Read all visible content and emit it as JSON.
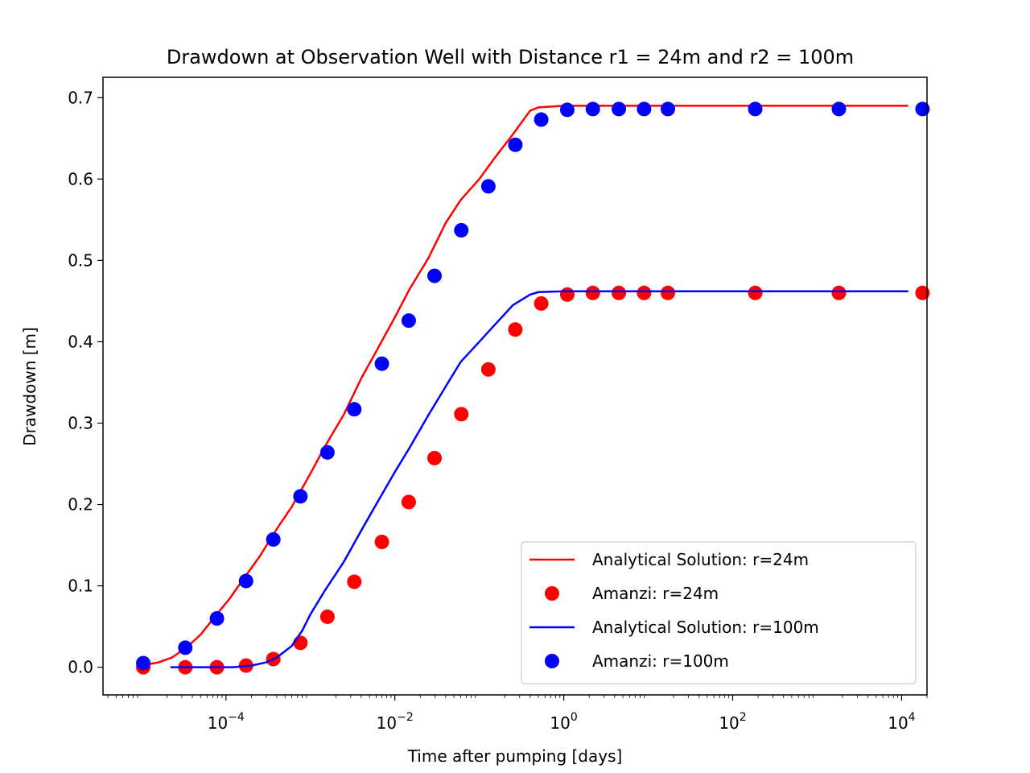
{
  "chart_data": {
    "type": "line",
    "title": "Drawdown at Observation Well with Distance r1  = 24m and r2 = 100m",
    "xlabel": "Time after pumping [days]",
    "ylabel": "Drawdown [m]",
    "xscale": "log",
    "xlim": [
      3.5e-06,
      20000
    ],
    "ylim": [
      -0.034,
      0.725
    ],
    "x_ticks": [
      {
        "value": 0.0001,
        "base": "10",
        "exp": "−4"
      },
      {
        "value": 0.01,
        "base": "10",
        "exp": "−2"
      },
      {
        "value": 1,
        "base": "10",
        "exp": "0"
      },
      {
        "value": 100,
        "base": "10",
        "exp": "2"
      },
      {
        "value": 10000,
        "base": "10",
        "exp": "4"
      }
    ],
    "y_ticks": [
      "0.0",
      "0.1",
      "0.2",
      "0.3",
      "0.4",
      "0.5",
      "0.6",
      "0.7"
    ],
    "grid": false,
    "legend_position": "lower right",
    "series": [
      {
        "name": "Analytical Solution: r=24m",
        "kind": "line",
        "color": "#ff0000",
        "x": [
          1.1e-05,
          1.6e-05,
          2.3e-05,
          3.4e-05,
          5e-05,
          7.5e-05,
          0.00011,
          0.00016,
          0.00025,
          0.0004,
          0.0006,
          0.001,
          0.0015,
          0.0025,
          0.004,
          0.006,
          0.01,
          0.015,
          0.025,
          0.04,
          0.06,
          0.1,
          0.15,
          0.25,
          0.4,
          0.5,
          1,
          10,
          100,
          1000,
          12000
        ],
        "y": [
          0.003,
          0.006,
          0.012,
          0.024,
          0.04,
          0.063,
          0.084,
          0.108,
          0.136,
          0.17,
          0.197,
          0.238,
          0.272,
          0.311,
          0.355,
          0.388,
          0.43,
          0.465,
          0.503,
          0.546,
          0.574,
          0.6,
          0.625,
          0.655,
          0.684,
          0.688,
          0.69,
          0.69,
          0.69,
          0.69,
          0.69
        ]
      },
      {
        "name": "Amanzi: r=24m",
        "kind": "scatter",
        "color": "#ff0000",
        "x": [
          1.05e-05,
          3.3e-05,
          7.82e-05,
          0.000173,
          0.000364,
          0.000762,
          0.00159,
          0.00331,
          0.00702,
          0.0146,
          0.0295,
          0.0612,
          0.128,
          0.267,
          0.541,
          1.1,
          2.21,
          4.49,
          8.93,
          17.1,
          185,
          1810,
          17700
        ],
        "y": [
          0.0,
          0.0,
          0.0,
          0.002,
          0.01,
          0.03,
          0.062,
          0.105,
          0.154,
          0.203,
          0.257,
          0.311,
          0.366,
          0.415,
          0.447,
          0.458,
          0.46,
          0.46,
          0.46,
          0.46,
          0.46,
          0.46,
          0.46
        ]
      },
      {
        "name": "Analytical Solution: r=100m",
        "kind": "line",
        "color": "#0000ff",
        "x": [
          2.2e-05,
          4e-05,
          7e-05,
          0.00012,
          0.0002,
          0.0003,
          0.0004,
          0.0006,
          0.0008,
          0.001,
          0.0015,
          0.0025,
          0.004,
          0.006,
          0.01,
          0.015,
          0.025,
          0.04,
          0.06,
          0.1,
          0.15,
          0.25,
          0.4,
          0.5,
          1,
          10,
          100,
          1000,
          12000
        ],
        "y": [
          0.0,
          0.0,
          0.0,
          0.0,
          0.002,
          0.006,
          0.012,
          0.026,
          0.045,
          0.065,
          0.095,
          0.13,
          0.168,
          0.2,
          0.24,
          0.27,
          0.31,
          0.345,
          0.375,
          0.4,
          0.42,
          0.445,
          0.458,
          0.461,
          0.462,
          0.462,
          0.462,
          0.462,
          0.462
        ]
      },
      {
        "name": "Amanzi: r=100m",
        "kind": "scatter",
        "color": "#0000ff",
        "x": [
          1.05e-05,
          3.3e-05,
          7.82e-05,
          0.000173,
          0.000364,
          0.000762,
          0.00159,
          0.00331,
          0.00702,
          0.0146,
          0.0295,
          0.0612,
          0.128,
          0.267,
          0.541,
          1.1,
          2.21,
          4.49,
          8.93,
          17.1,
          185,
          1810,
          17700
        ],
        "y": [
          0.005,
          0.024,
          0.06,
          0.106,
          0.157,
          0.21,
          0.264,
          0.317,
          0.373,
          0.426,
          0.481,
          0.537,
          0.591,
          0.642,
          0.673,
          0.685,
          0.686,
          0.686,
          0.686,
          0.686,
          0.686,
          0.686,
          0.686
        ]
      }
    ]
  }
}
